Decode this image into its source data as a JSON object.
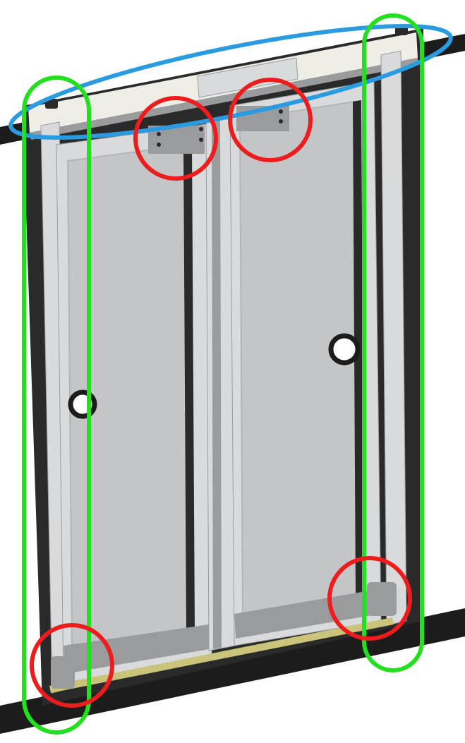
{
  "colors": {
    "background": "#ffffff",
    "rail": "#1c1c1c",
    "frame_dark": "#2a2a2a",
    "door_panel": "#c4c5c7",
    "door_panel_shade": "#b3b4b6",
    "aluminum": "#d9dadc",
    "aluminum_dark": "#9a9b9d",
    "header_beam": "#eeede6",
    "seal_strip": "#c9c47a",
    "highlight_blue": "#2a9be0",
    "highlight_green": "#22e01e",
    "highlight_red": "#ee1c1c"
  },
  "components": [
    {
      "name": "upper-track-rail",
      "icon": "rail-shape"
    },
    {
      "name": "lower-floor-rail",
      "icon": "rail-shape"
    },
    {
      "name": "header-beam",
      "icon": "beam-shape"
    },
    {
      "name": "left-door-leaf",
      "icon": "door-panel-shape"
    },
    {
      "name": "right-door-leaf",
      "icon": "door-panel-shape"
    },
    {
      "name": "center-mullion",
      "icon": "post-shape"
    },
    {
      "name": "left-handle-hole",
      "icon": "circle-hole"
    },
    {
      "name": "right-handle-hole",
      "icon": "circle-hole"
    }
  ],
  "highlights": {
    "blue_ellipse_count": 1,
    "green_capsule_count": 2,
    "red_circle_count": 4
  }
}
